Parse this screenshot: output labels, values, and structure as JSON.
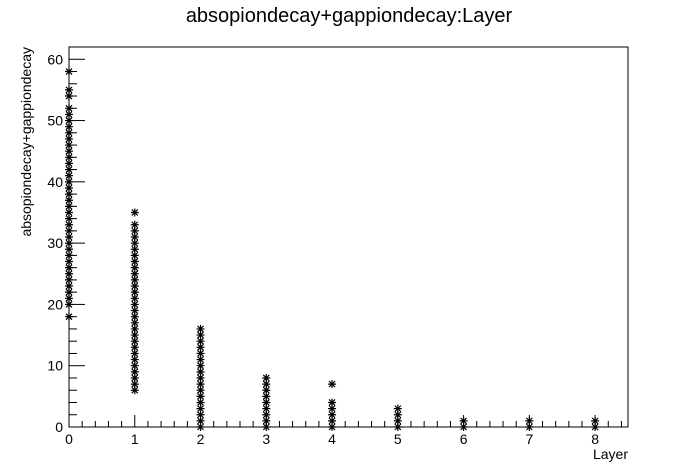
{
  "chart_data": {
    "type": "scatter",
    "title": "absopiondecay+gappiondecay:Layer",
    "xlabel": "Layer",
    "ylabel": "absopiondecay+gappiondecay",
    "xlim": [
      0,
      8.5
    ],
    "ylim": [
      0,
      62
    ],
    "x_ticks": [
      "0",
      "1",
      "2",
      "3",
      "4",
      "5",
      "6",
      "7",
      "8"
    ],
    "y_ticks": [
      "0",
      "10",
      "20",
      "30",
      "40",
      "50",
      "60"
    ],
    "marker": "asterisk",
    "color": "#000000",
    "grid": false,
    "legend": "none",
    "series": [
      {
        "x": 0,
        "y": [
          18,
          20,
          21,
          22,
          23,
          24,
          25,
          26,
          27,
          28,
          29,
          30,
          31,
          32,
          33,
          34,
          35,
          36,
          37,
          38,
          39,
          40,
          41,
          42,
          43,
          44,
          45,
          46,
          47,
          48,
          49,
          50,
          51,
          52,
          54,
          55,
          58
        ]
      },
      {
        "x": 1,
        "y": [
          6,
          7,
          8,
          9,
          10,
          11,
          12,
          13,
          14,
          15,
          16,
          17,
          18,
          19,
          20,
          21,
          22,
          23,
          24,
          25,
          26,
          27,
          28,
          29,
          30,
          31,
          32,
          33,
          35
        ]
      },
      {
        "x": 2,
        "y": [
          0,
          1,
          2,
          3,
          4,
          5,
          6,
          7,
          8,
          9,
          10,
          11,
          12,
          13,
          14,
          15,
          16
        ]
      },
      {
        "x": 3,
        "y": [
          0,
          1,
          2,
          3,
          4,
          5,
          6,
          7,
          8
        ]
      },
      {
        "x": 4,
        "y": [
          0,
          1,
          2,
          3,
          4,
          7
        ]
      },
      {
        "x": 5,
        "y": [
          0,
          1,
          2,
          3
        ]
      },
      {
        "x": 6,
        "y": [
          0,
          1
        ]
      },
      {
        "x": 7,
        "y": [
          0,
          1
        ]
      },
      {
        "x": 8,
        "y": [
          0,
          1
        ]
      }
    ]
  }
}
